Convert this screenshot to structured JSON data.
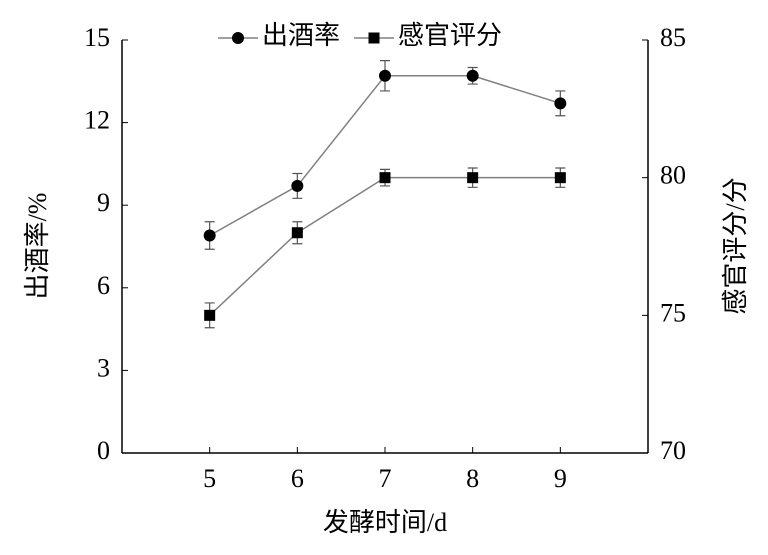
{
  "chart_data": {
    "type": "line",
    "x": [
      5,
      6,
      7,
      8,
      9
    ],
    "xlim": [
      4,
      10
    ],
    "xticks": [
      5,
      6,
      7,
      8,
      9
    ],
    "ylim": [
      0,
      15
    ],
    "yticks": [
      0,
      3,
      6,
      9,
      12,
      15
    ],
    "y2lim": [
      70,
      85
    ],
    "y2ticks": [
      70,
      75,
      80,
      85
    ],
    "x_label": "发酵时间/d",
    "y_label": "出酒率/%",
    "y2_label": "感官评分/分",
    "legend": "top",
    "series": [
      {
        "name": "出酒率",
        "color": "#000000",
        "line_color": "#808080",
        "marker": "circle",
        "values": [
          7.9,
          9.7,
          13.7,
          13.7,
          12.7
        ],
        "errors": [
          0.5,
          0.45,
          0.55,
          0.3,
          0.45
        ]
      },
      {
        "name": "感官评分",
        "color": "#000000",
        "line_color": "#808080",
        "marker": "square",
        "axis": "y2",
        "values": [
          75,
          78,
          80,
          80,
          80
        ],
        "errors": [
          0.45,
          0.4,
          0.3,
          0.35,
          0.35
        ]
      }
    ]
  }
}
